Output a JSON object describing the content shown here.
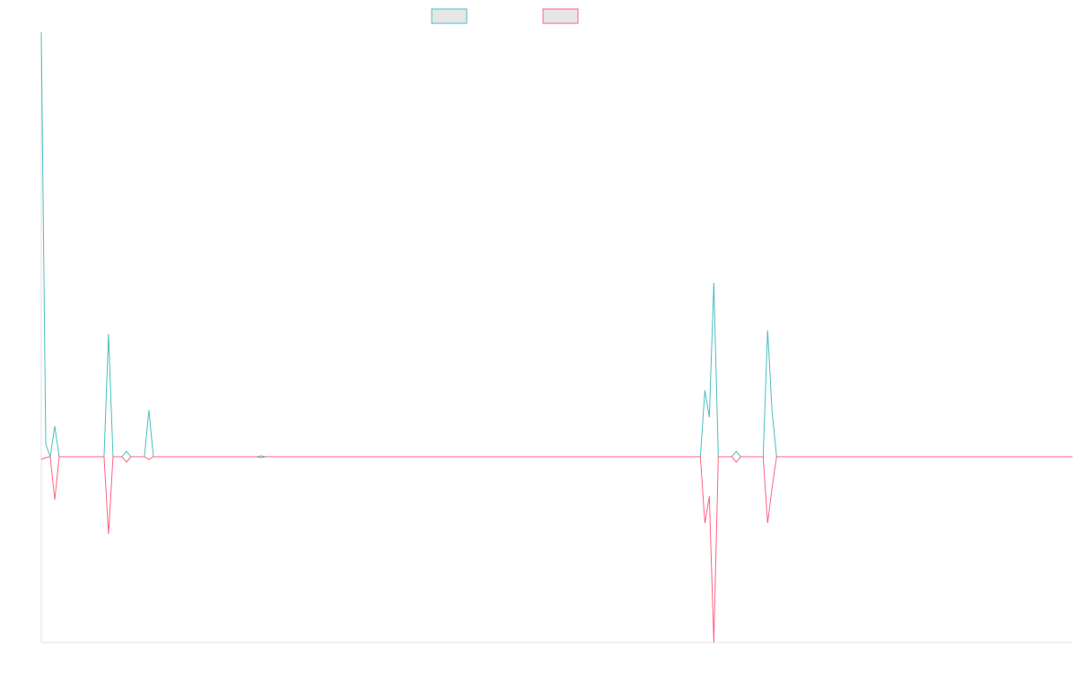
{
  "chart_data": {
    "type": "line",
    "ylim": [
      -20.7,
      47.3
    ],
    "series": [
      {
        "color": "#4bc0c0",
        "values": [
          47.3,
          1.4,
          0,
          3.4,
          0,
          0,
          0,
          0,
          0,
          0,
          0,
          0,
          0,
          0,
          0,
          13.7,
          0,
          0,
          0,
          0.6,
          0,
          0,
          0,
          0,
          5.2,
          0,
          0,
          0,
          0,
          0,
          0,
          0,
          0,
          0,
          0,
          0,
          0,
          0,
          0,
          0,
          0,
          0,
          0,
          0,
          0,
          0,
          0,
          0,
          0,
          0.1,
          0,
          0,
          0,
          0,
          0,
          0,
          0,
          0,
          0,
          0,
          0,
          0,
          0,
          0,
          0,
          0,
          0,
          0,
          0,
          0,
          0,
          0,
          0,
          0,
          0,
          0,
          0,
          0,
          0,
          0,
          0,
          0,
          0,
          0,
          0,
          0,
          0,
          0,
          0,
          0,
          0,
          0,
          0,
          0,
          0,
          0,
          0,
          0,
          0,
          0,
          0,
          0,
          0,
          0,
          0,
          0,
          0,
          0,
          0,
          0,
          0,
          0,
          0,
          0,
          0,
          0,
          0,
          0,
          0,
          0,
          0,
          0,
          0,
          0,
          0,
          0,
          0,
          0,
          0,
          0,
          0,
          0,
          0,
          0,
          0,
          0,
          0,
          0,
          0,
          0,
          0,
          0,
          0,
          0,
          0,
          0,
          0,
          0,
          7.4,
          4.4,
          19.4,
          0,
          0,
          0,
          0,
          0.6,
          0,
          0,
          0,
          0,
          0,
          0,
          14.1,
          5.0,
          0,
          0,
          0,
          0,
          0,
          0,
          0,
          0,
          0,
          0,
          0,
          0,
          0,
          0,
          0,
          0,
          0,
          0,
          0,
          0,
          0,
          0,
          0,
          0,
          0,
          0,
          0,
          0,
          0,
          0,
          0,
          0,
          0,
          0,
          0,
          0,
          0,
          0,
          0,
          0,
          0,
          0,
          0,
          0,
          0,
          0,
          0,
          0,
          0,
          0,
          0,
          0,
          0,
          0,
          0,
          0,
          0,
          0,
          0,
          0,
          0,
          0,
          0,
          0,
          0,
          0,
          0
        ]
      },
      {
        "color": "#ff6384",
        "values": [
          -0.3,
          -0.1,
          0,
          -4.8,
          0,
          0,
          0,
          0,
          0,
          0,
          0,
          0,
          0,
          0,
          0,
          -8.6,
          0,
          0,
          0,
          -0.6,
          0,
          0,
          0,
          0,
          -0.3,
          0,
          0,
          0,
          0,
          0,
          0,
          0,
          0,
          0,
          0,
          0,
          0,
          0,
          0,
          0,
          0,
          0,
          0,
          0,
          0,
          0,
          0,
          0,
          0,
          -0.1,
          0,
          0,
          0,
          0,
          0,
          0,
          0,
          0,
          0,
          0,
          0,
          0,
          0,
          0,
          0,
          0,
          0,
          0,
          0,
          0,
          0,
          0,
          0,
          0,
          0,
          0,
          0,
          0,
          0,
          0,
          0,
          0,
          0,
          0,
          0,
          0,
          0,
          0,
          0,
          0,
          0,
          0,
          0,
          0,
          0,
          0,
          0,
          0,
          0,
          0,
          0,
          0,
          0,
          0,
          0,
          0,
          0,
          0,
          0,
          0,
          0,
          0,
          0,
          0,
          0,
          0,
          0,
          0,
          0,
          0,
          0,
          0,
          0,
          0,
          0,
          0,
          0,
          0,
          0,
          0,
          0,
          0,
          0,
          0,
          0,
          0,
          0,
          0,
          0,
          0,
          0,
          0,
          0,
          0,
          0,
          0,
          0,
          0,
          -7.4,
          -4.4,
          -20.7,
          0,
          0,
          0,
          0,
          -0.6,
          0,
          0,
          0,
          0,
          0,
          0,
          -7.4,
          -3.4,
          0,
          0,
          0,
          0,
          0,
          0,
          0,
          0,
          0,
          0,
          0,
          0,
          0,
          0,
          0,
          0,
          0,
          0,
          0,
          0,
          0,
          0,
          0,
          0,
          0,
          0,
          0,
          0,
          0,
          0,
          0,
          0,
          0,
          0,
          0,
          0,
          0,
          0,
          0,
          0,
          0,
          0,
          0,
          0,
          0,
          0,
          0,
          0,
          0,
          0,
          0,
          0,
          0,
          0,
          0,
          0,
          0,
          0,
          0,
          0,
          0,
          0,
          0,
          0,
          0,
          0,
          0
        ]
      }
    ]
  }
}
